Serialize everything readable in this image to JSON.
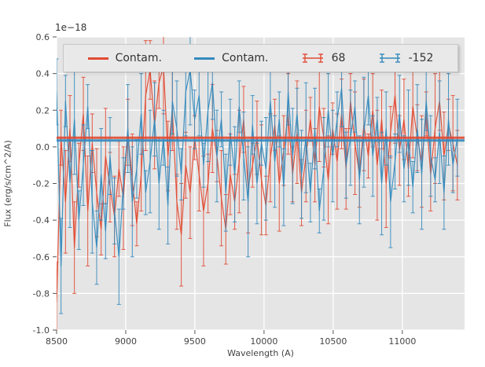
{
  "chart_data": {
    "type": "line",
    "title": "",
    "xlabel": "Wavelength (A)",
    "ylabel": "Flux (erg/s/cm^2/A)",
    "offset_text": "1e−18",
    "xlim": [
      8500,
      11450
    ],
    "ylim": [
      -1.0,
      0.6
    ],
    "xticks": [
      8500,
      9000,
      9500,
      10000,
      10500,
      11000
    ],
    "yticks": [
      -1.0,
      -0.8,
      -0.6,
      -0.4,
      -0.2,
      0.0,
      0.2,
      0.4,
      0.6
    ],
    "ytick_labels": [
      "-1.0",
      "-0.8",
      "-0.6",
      "-0.4",
      "-0.2",
      "0.0",
      "0.2",
      "0.4",
      "0.6"
    ],
    "grid": true,
    "legend_position": "upper center horizontal",
    "colors": {
      "red": "#E24A33",
      "blue": "#348ABD",
      "plot_bg": "#E5E5E5",
      "grid": "#FFFFFF",
      "tick": "#555555",
      "text": "#444444"
    },
    "series": [
      {
        "name": "Contam.",
        "color_key": "red",
        "kind": "hline",
        "value": 0.05
      },
      {
        "name": "Contam.",
        "color_key": "blue",
        "kind": "hline",
        "value": 0.035
      },
      {
        "name": "68",
        "color_key": "red",
        "kind": "errorbar",
        "x_start": 8500,
        "x_step": 32.2,
        "values": [
          -0.85,
          0.05,
          -0.3,
          0.1,
          -0.55,
          -0.1,
          0.18,
          -0.35,
          0.02,
          -0.25,
          -0.45,
          -0.05,
          -0.22,
          -0.38,
          -0.12,
          -0.28,
          0.08,
          -0.18,
          -0.42,
          -0.15,
          0.28,
          0.42,
          0.12,
          0.35,
          0.44,
          -0.05,
          0.2,
          -0.3,
          -0.48,
          -0.1,
          -0.25,
          0.05,
          -0.15,
          -0.35,
          -0.2,
          0.1,
          -0.05,
          -0.28,
          -0.45,
          -0.15,
          -0.3,
          -0.08,
          0.15,
          -0.22,
          -0.1,
          0.05,
          -0.18,
          -0.32,
          -0.06,
          0.12,
          -0.2,
          -0.02,
          0.18,
          -0.15,
          0.08,
          -0.25,
          -0.05,
          0.15,
          -0.1,
          0.22,
          0.05,
          -0.18,
          0.1,
          -0.08,
          0.18,
          -0.12,
          0.25,
          0.02,
          -0.15,
          0.12,
          -0.05,
          0.2,
          -0.1,
          0.15,
          -0.2,
          0.08,
          0.28,
          -0.02,
          0.15,
          -0.12,
          0.22,
          0.05,
          -0.08,
          0.18,
          -0.15,
          0.1,
          0.25,
          -0.05,
          0.12,
          0.02,
          -0.1
        ],
        "errors": [
          0.22,
          0.15,
          0.28,
          0.18,
          0.25,
          0.12,
          0.2,
          0.3,
          0.16,
          0.24,
          0.14,
          0.26,
          0.19,
          0.22,
          0.15,
          0.28,
          0.18,
          0.25,
          0.12,
          0.2,
          0.3,
          0.16,
          0.24,
          0.14,
          0.26,
          0.19,
          0.22,
          0.15,
          0.28,
          0.18,
          0.25,
          0.12,
          0.2,
          0.3,
          0.16,
          0.24,
          0.14,
          0.26,
          0.19,
          0.22,
          0.15,
          0.28,
          0.18,
          0.25,
          0.12,
          0.2,
          0.3,
          0.16,
          0.24,
          0.14,
          0.26,
          0.19,
          0.22,
          0.15,
          0.28,
          0.18,
          0.25,
          0.12,
          0.2,
          0.3,
          0.16,
          0.24,
          0.14,
          0.26,
          0.19,
          0.22,
          0.15,
          0.28,
          0.18,
          0.25,
          0.12,
          0.2,
          0.3,
          0.16,
          0.24,
          0.14,
          0.26,
          0.19,
          0.22,
          0.15,
          0.28,
          0.18,
          0.25,
          0.12,
          0.2,
          0.3,
          0.16,
          0.24,
          0.14,
          0.26,
          0.19
        ]
      },
      {
        "name": "-152",
        "color_key": "blue",
        "kind": "errorbar",
        "x_start": 8500,
        "x_step": 32.2,
        "values": [
          0.3,
          -0.65,
          0.25,
          -0.2,
          0.15,
          -0.4,
          -0.1,
          0.22,
          -0.3,
          -0.55,
          -0.15,
          -0.46,
          -0.05,
          -0.35,
          -0.6,
          -0.2,
          0.1,
          -0.3,
          -0.12,
          0.18,
          -0.25,
          -0.08,
          0.15,
          -0.2,
          0.05,
          -0.32,
          0.25,
          0.1,
          -0.15,
          0.3,
          0.42,
          0.15,
          0.28,
          -0.1,
          0.2,
          0.35,
          -0.05,
          0.15,
          -0.25,
          0.08,
          -0.15,
          0.22,
          -0.05,
          -0.3,
          0.12,
          -0.2,
          0.02,
          -0.12,
          0.25,
          -0.08,
          0.15,
          -0.22,
          0.3,
          -0.05,
          0.18,
          -0.15,
          0.05,
          -0.25,
          0.1,
          -0.35,
          -0.12,
          0.2,
          -0.05,
          0.15,
          0.32,
          -0.1,
          0.05,
          0.22,
          -0.18,
          0.08,
          0.28,
          -0.05,
          0.15,
          -0.2,
          0.1,
          -0.3,
          -0.08,
          0.18,
          -0.12,
          0.05,
          -0.22,
          0.1,
          -0.15,
          0.25,
          -0.05,
          -0.18,
          0.08,
          -0.25,
          0.15,
          -0.1,
          0.05
        ],
        "errors": [
          0.18,
          0.26,
          0.14,
          0.24,
          0.3,
          0.16,
          0.22,
          0.12,
          0.28,
          0.2,
          0.25,
          0.15,
          0.21,
          0.18,
          0.26,
          0.14,
          0.24,
          0.3,
          0.16,
          0.22,
          0.12,
          0.28,
          0.2,
          0.25,
          0.15,
          0.21,
          0.18,
          0.26,
          0.14,
          0.24,
          0.3,
          0.16,
          0.22,
          0.12,
          0.28,
          0.2,
          0.25,
          0.15,
          0.21,
          0.18,
          0.26,
          0.14,
          0.24,
          0.3,
          0.16,
          0.22,
          0.12,
          0.28,
          0.2,
          0.25,
          0.15,
          0.21,
          0.18,
          0.26,
          0.14,
          0.24,
          0.3,
          0.16,
          0.22,
          0.12,
          0.28,
          0.2,
          0.25,
          0.15,
          0.21,
          0.18,
          0.26,
          0.14,
          0.24,
          0.3,
          0.16,
          0.22,
          0.12,
          0.28,
          0.2,
          0.25,
          0.15,
          0.21,
          0.18,
          0.26,
          0.14,
          0.24,
          0.3,
          0.16,
          0.22,
          0.12,
          0.28,
          0.2,
          0.25,
          0.15,
          0.21
        ]
      }
    ],
    "legend": {
      "items": [
        {
          "label": "Contam.",
          "color_key": "red",
          "symbol": "line"
        },
        {
          "label": "Contam.",
          "color_key": "blue",
          "symbol": "line"
        },
        {
          "label": "68",
          "color_key": "red",
          "symbol": "errorbar"
        },
        {
          "label": "-152",
          "color_key": "blue",
          "symbol": "errorbar"
        }
      ]
    }
  }
}
